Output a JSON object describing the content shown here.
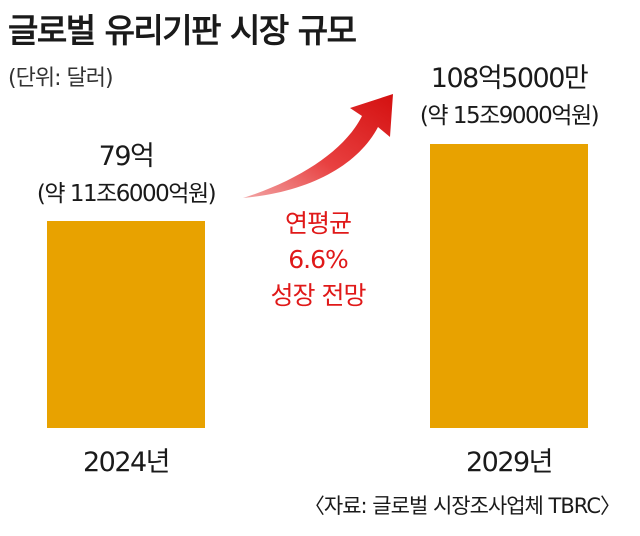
{
  "chart_data": {
    "type": "bar",
    "title": "글로벌 유리기판 시장 규모",
    "unit_label": "(단위: 달러)",
    "categories": [
      "2024년",
      "2029년"
    ],
    "values": [
      79,
      108.5
    ],
    "value_unit": "억 달러",
    "value_labels": [
      "79억",
      "108억5000만"
    ],
    "value_sublabels": [
      "(약 11조6000억원)",
      "(약 15조9000억원)"
    ],
    "annotation": [
      "연평균",
      "6.6%",
      "성장 전망"
    ],
    "source": "〈자료: 글로벌 시장조사업체 TBRC〉",
    "bar_color": "#e8a200",
    "annotation_color": "#e01919",
    "grid": false,
    "legend": "none"
  }
}
